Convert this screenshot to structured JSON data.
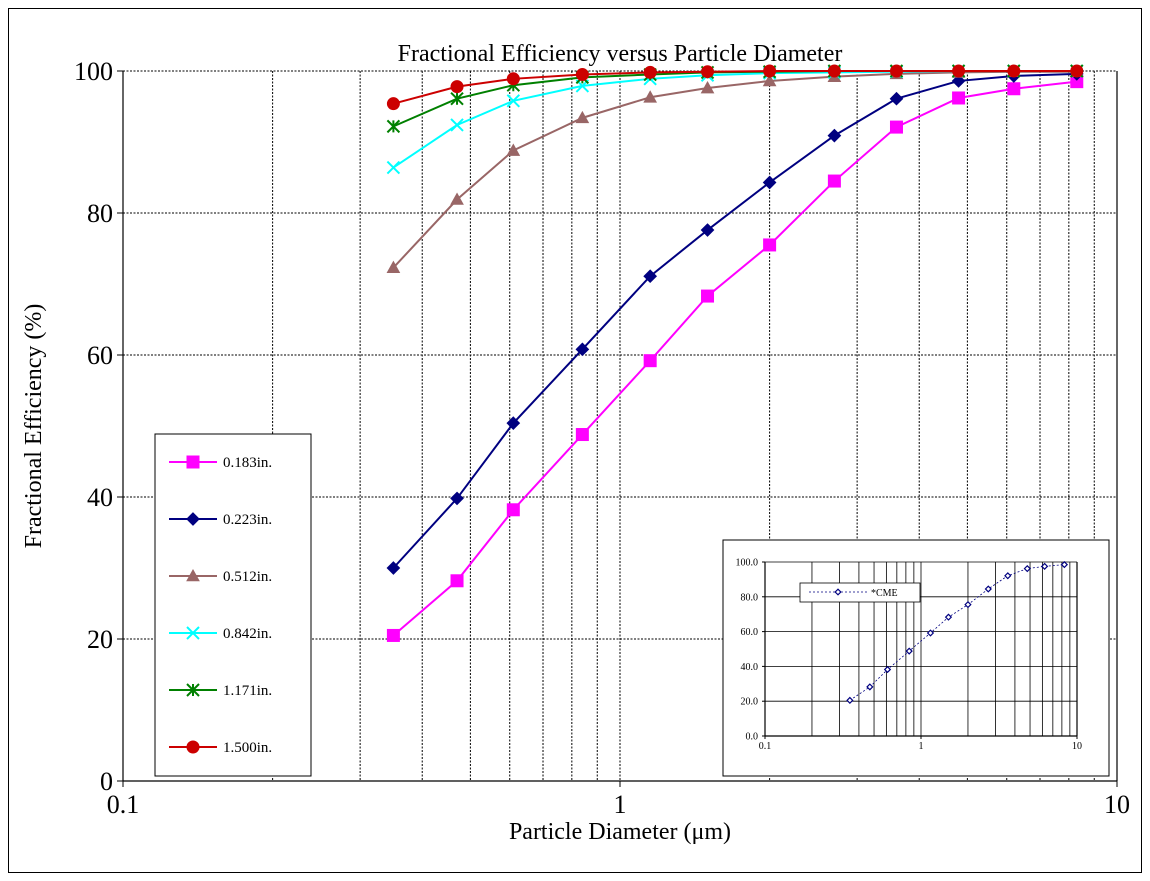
{
  "chart_data": [
    {
      "type": "line",
      "title": "Fractional Efficiency versus Particle Diameter",
      "xlabel": "Particle Diameter (μm)",
      "ylabel": "Fractional Efficiency (%)",
      "xscale": "log",
      "xlim": [
        0.1,
        10
      ],
      "ylim": [
        0,
        100
      ],
      "xticks": [
        0.1,
        1,
        10
      ],
      "xtick_labels": [
        "0.1",
        "1",
        "10"
      ],
      "yticks": [
        0,
        20,
        40,
        60,
        80,
        100
      ],
      "ytick_labels": [
        "0",
        "20",
        "40",
        "60",
        "80",
        "100"
      ],
      "grid": true,
      "legend_position": "left",
      "x": [
        0.35,
        0.47,
        0.61,
        0.84,
        1.15,
        1.5,
        2.0,
        2.7,
        3.6,
        4.8,
        6.2,
        8.3
      ],
      "series": [
        {
          "name": "0.183in.",
          "color": "#ff00ff",
          "marker": "square",
          "values": [
            20.5,
            28.2,
            38.2,
            48.8,
            59.2,
            68.3,
            75.5,
            84.5,
            92.1,
            96.2,
            97.5,
            98.5
          ]
        },
        {
          "name": "0.223in.",
          "color": "#000080",
          "marker": "diamond",
          "values": [
            30.0,
            39.8,
            50.4,
            60.8,
            71.1,
            77.6,
            84.3,
            90.9,
            96.1,
            98.6,
            99.3,
            99.6
          ]
        },
        {
          "name": "0.512in.",
          "color": "#996666",
          "marker": "triangle",
          "values": [
            72.3,
            81.9,
            88.8,
            93.4,
            96.3,
            97.6,
            98.6,
            99.2,
            99.6,
            99.8,
            99.9,
            99.9
          ]
        },
        {
          "name": "0.842in.",
          "color": "#00ffff",
          "marker": "x",
          "values": [
            86.4,
            92.4,
            95.8,
            97.9,
            98.9,
            99.4,
            99.7,
            99.8,
            99.9,
            100.0,
            100.0,
            100.0
          ]
        },
        {
          "name": "1.171in.",
          "color": "#008000",
          "marker": "star",
          "values": [
            92.2,
            96.1,
            98.0,
            99.1,
            99.5,
            99.8,
            99.9,
            100.0,
            100.0,
            100.0,
            100.0,
            100.0
          ]
        },
        {
          "name": "1.500in.",
          "color": "#cc0000",
          "marker": "circle",
          "values": [
            95.4,
            97.8,
            98.9,
            99.5,
            99.8,
            99.9,
            100.0,
            100.0,
            100.0,
            100.0,
            100.0,
            100.0
          ]
        }
      ]
    },
    {
      "type": "line",
      "title": "",
      "xlabel": "",
      "ylabel": "",
      "xscale": "log",
      "xlim": [
        0.1,
        10
      ],
      "ylim": [
        0,
        100
      ],
      "xticks": [
        0.1,
        1,
        10
      ],
      "xtick_labels": [
        "0.1",
        "1",
        "10"
      ],
      "yticks": [
        0,
        20,
        40,
        60,
        80,
        100
      ],
      "ytick_labels": [
        "0.0",
        "20.0",
        "40.0",
        "60.0",
        "80.0",
        "100.0"
      ],
      "grid": true,
      "legend_position": "top-left",
      "x": [
        0.35,
        0.47,
        0.61,
        0.84,
        1.15,
        1.5,
        2.0,
        2.7,
        3.6,
        4.8,
        6.2,
        8.3
      ],
      "series": [
        {
          "name": "*CME",
          "color": "#000080",
          "marker": "open-diamond",
          "line_style": "dotted",
          "values": [
            20.5,
            28.2,
            38.2,
            48.8,
            59.2,
            68.3,
            75.5,
            84.5,
            92.1,
            96.2,
            97.5,
            98.5
          ]
        }
      ]
    }
  ]
}
